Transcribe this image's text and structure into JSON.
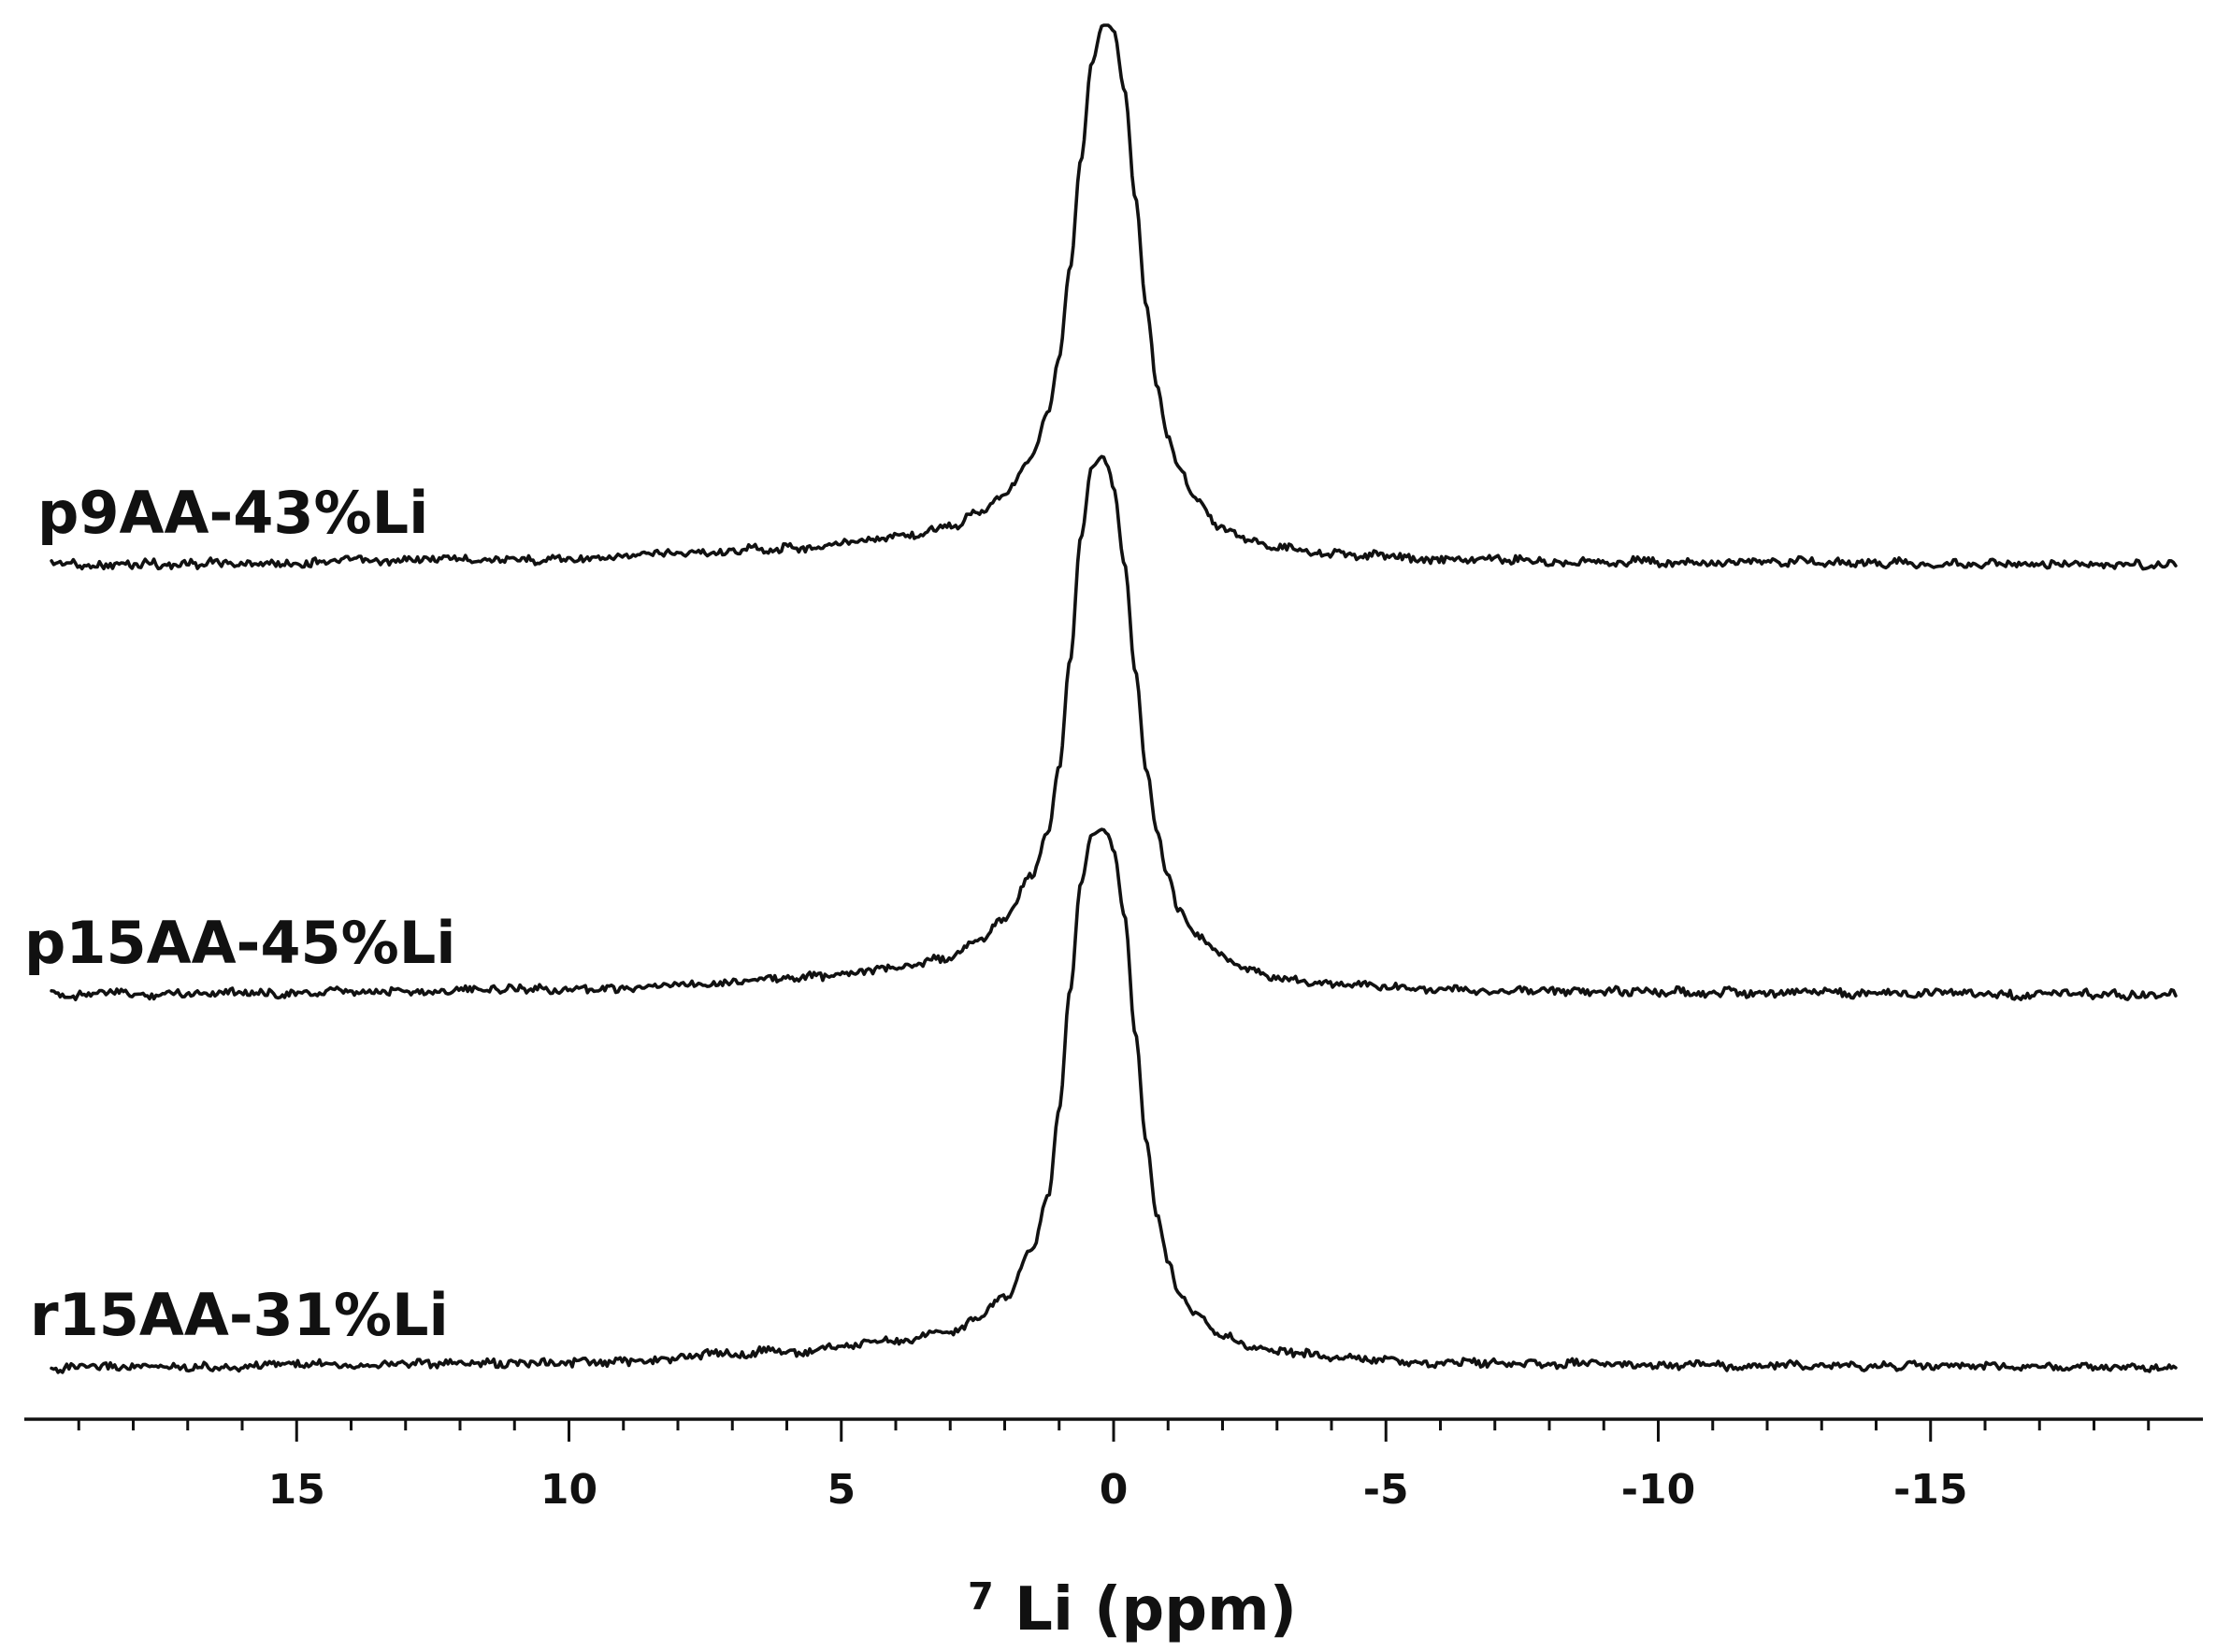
{
  "chart_data": {
    "type": "line",
    "subtype": "stacked NMR spectra (offset traces)",
    "xlabel": {
      "superscript": "7",
      "text": "Li (ppm)"
    },
    "x_reversed": true,
    "xlim": [
      20,
      -20
    ],
    "x_ticks": [
      15,
      10,
      5,
      0,
      -5,
      -10,
      -15
    ],
    "x_tick_labels": [
      "15",
      "10",
      "5",
      "0",
      "-5",
      "-10",
      "-15"
    ],
    "x_minor_tick_step": 1,
    "y_axis_shown": false,
    "grid": false,
    "series": [
      {
        "name": "p9AA-43%Li",
        "order": 1,
        "peak_ppm": 0.1,
        "x": [
          20,
          10,
          6,
          4,
          3,
          2.5,
          2,
          1.5,
          1.2,
          1.0,
          0.8,
          0.6,
          0.4,
          0.2,
          0.1,
          0.0,
          -0.2,
          -0.4,
          -0.6,
          -0.8,
          -1.0,
          -1.2,
          -1.5,
          -2,
          -2.5,
          -3,
          -4,
          -6,
          -10,
          -20
        ],
        "y": [
          0.0,
          0.01,
          0.03,
          0.05,
          0.07,
          0.1,
          0.13,
          0.2,
          0.28,
          0.38,
          0.55,
          0.75,
          0.93,
          1.0,
          1.0,
          0.99,
          0.88,
          0.68,
          0.48,
          0.33,
          0.24,
          0.18,
          0.12,
          0.07,
          0.05,
          0.03,
          0.02,
          0.01,
          0.005,
          0.0
        ]
      },
      {
        "name": "p15AA-45%Li",
        "order": 2,
        "peak_ppm": 0.2,
        "x": [
          20,
          10,
          6,
          4,
          3,
          2.5,
          2,
          1.5,
          1.2,
          1.0,
          0.8,
          0.6,
          0.4,
          0.2,
          0.1,
          0.0,
          -0.2,
          -0.4,
          -0.6,
          -0.8,
          -1.0,
          -1.2,
          -1.5,
          -2,
          -2.5,
          -3,
          -4,
          -6,
          -10,
          -20
        ],
        "y": [
          0.0,
          0.01,
          0.03,
          0.05,
          0.07,
          0.1,
          0.14,
          0.22,
          0.3,
          0.42,
          0.62,
          0.85,
          0.98,
          1.0,
          0.98,
          0.94,
          0.8,
          0.6,
          0.42,
          0.3,
          0.22,
          0.16,
          0.11,
          0.07,
          0.05,
          0.03,
          0.02,
          0.01,
          0.005,
          0.0
        ]
      },
      {
        "name": "r15AA-31%Li",
        "order": 3,
        "peak_ppm": 0.1,
        "x": [
          20,
          10,
          6,
          4,
          3,
          2.5,
          2,
          1.5,
          1.2,
          1.0,
          0.8,
          0.6,
          0.4,
          0.2,
          0.1,
          0.0,
          -0.2,
          -0.4,
          -0.6,
          -0.8,
          -1.0,
          -1.2,
          -1.5,
          -2,
          -2.5,
          -3,
          -4,
          -6,
          -10,
          -20
        ],
        "y": [
          0.0,
          0.01,
          0.03,
          0.05,
          0.07,
          0.09,
          0.13,
          0.22,
          0.32,
          0.48,
          0.7,
          0.9,
          0.99,
          1.0,
          0.99,
          0.96,
          0.84,
          0.62,
          0.42,
          0.28,
          0.2,
          0.14,
          0.1,
          0.06,
          0.04,
          0.03,
          0.02,
          0.01,
          0.005,
          0.0
        ]
      }
    ]
  }
}
